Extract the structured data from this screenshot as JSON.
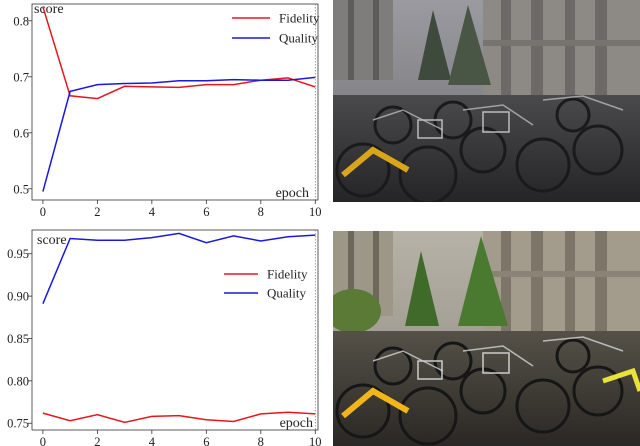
{
  "chart_data": [
    {
      "type": "line",
      "xlabel": "epoch",
      "ylabel": "score",
      "x": [
        0,
        1,
        2,
        3,
        4,
        5,
        6,
        7,
        8,
        9,
        10
      ],
      "xticks": [
        "0",
        "2",
        "4",
        "6",
        "8",
        "10"
      ],
      "yticks": [
        "0.5",
        "0.6",
        "0.7",
        "0.8"
      ],
      "xlim": [
        -0.4,
        10.1
      ],
      "ylim": [
        0.48,
        0.83
      ],
      "legend": "top-right",
      "grid": false,
      "series": [
        {
          "name": "Fidelity",
          "color": "#e8161c",
          "values": [
            0.825,
            0.666,
            0.661,
            0.683,
            0.682,
            0.681,
            0.686,
            0.686,
            0.694,
            0.698,
            0.682
          ]
        },
        {
          "name": "Quality",
          "color": "#1818e0",
          "values": [
            0.495,
            0.674,
            0.686,
            0.688,
            0.689,
            0.693,
            0.693,
            0.695,
            0.694,
            0.694,
            0.699
          ]
        }
      ]
    },
    {
      "type": "line",
      "xlabel": "epoch",
      "ylabel": "score",
      "x": [
        0,
        1,
        2,
        3,
        4,
        5,
        6,
        7,
        8,
        9,
        10
      ],
      "xticks": [
        "0",
        "2",
        "4",
        "6",
        "8",
        "10"
      ],
      "yticks": [
        "0.75",
        "0.80",
        "0.85",
        "0.90",
        "0.95"
      ],
      "xlim": [
        -0.4,
        10.1
      ],
      "ylim": [
        0.742,
        0.978
      ],
      "legend": "top-right",
      "grid": false,
      "series": [
        {
          "name": "Fidelity",
          "color": "#e8161c",
          "values": [
            0.762,
            0.753,
            0.76,
            0.751,
            0.758,
            0.759,
            0.754,
            0.752,
            0.761,
            0.763,
            0.761
          ]
        },
        {
          "name": "Quality",
          "color": "#1818e0",
          "values": [
            0.891,
            0.968,
            0.966,
            0.966,
            0.969,
            0.974,
            0.963,
            0.971,
            0.965,
            0.97,
            0.972
          ]
        }
      ]
    }
  ],
  "images": [
    {
      "name": "bicycle-parking-photo-dark",
      "description": "hazy bicycle parking lot in front of a building"
    },
    {
      "name": "bicycle-parking-photo-enhanced",
      "description": "enhanced bicycle parking lot with green trees"
    }
  ]
}
